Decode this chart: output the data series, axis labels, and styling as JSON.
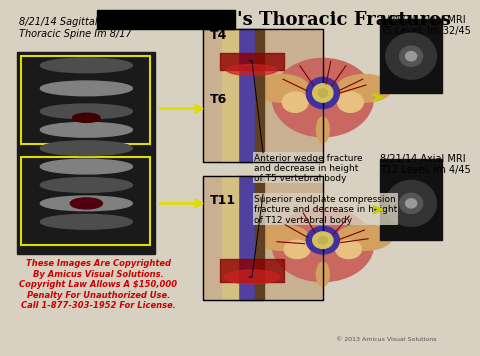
{
  "title": "'s Thoracic Fractures",
  "title_fontsize": 18,
  "title_bold": true,
  "bg_color": "#d8d0c0",
  "header_bg": "#000000",
  "label_sagittal": "8/21/14 Sagittal MRI\nThoracic Spine Im 8/17",
  "label_axial_t5": "8/21/14 Axial MRI\nT5 Level, Im 32/45",
  "label_axial_t12": "8/21/14 Axial MRI\nT12 Level, Im 4/45",
  "label_t4": "T4",
  "label_t6": "T6",
  "label_t11": "T11",
  "annotation1": "Anterior wedge fracture\nand decrease in height\nof T5 vertebral body",
  "annotation2": "Superior endplate compression\nfracture and decrease in height\nof T12 vertebral body",
  "copyright_text": "These Images Are Copyrighted\nBy Amicus Visual Solutions.\nCopyright Law Allows A $150,000\nPenalty For Unauthorized Use.\nCall 1-877-303-1952 For License.",
  "copyright_color": "#cc0000",
  "watermark_text": "© 2013 Amicus Visual Solutions",
  "spine_color_dark": "#4a3020",
  "spine_color_mid": "#c8a060",
  "cord_color": "#5040a0",
  "fracture_color": "#8b0000",
  "vertebra_body_color": "#d4a060",
  "mri_bg": "#101010",
  "annotation_fontsize": 6.5,
  "small_label_fontsize": 7,
  "vertebra_label_fontsize": 9
}
